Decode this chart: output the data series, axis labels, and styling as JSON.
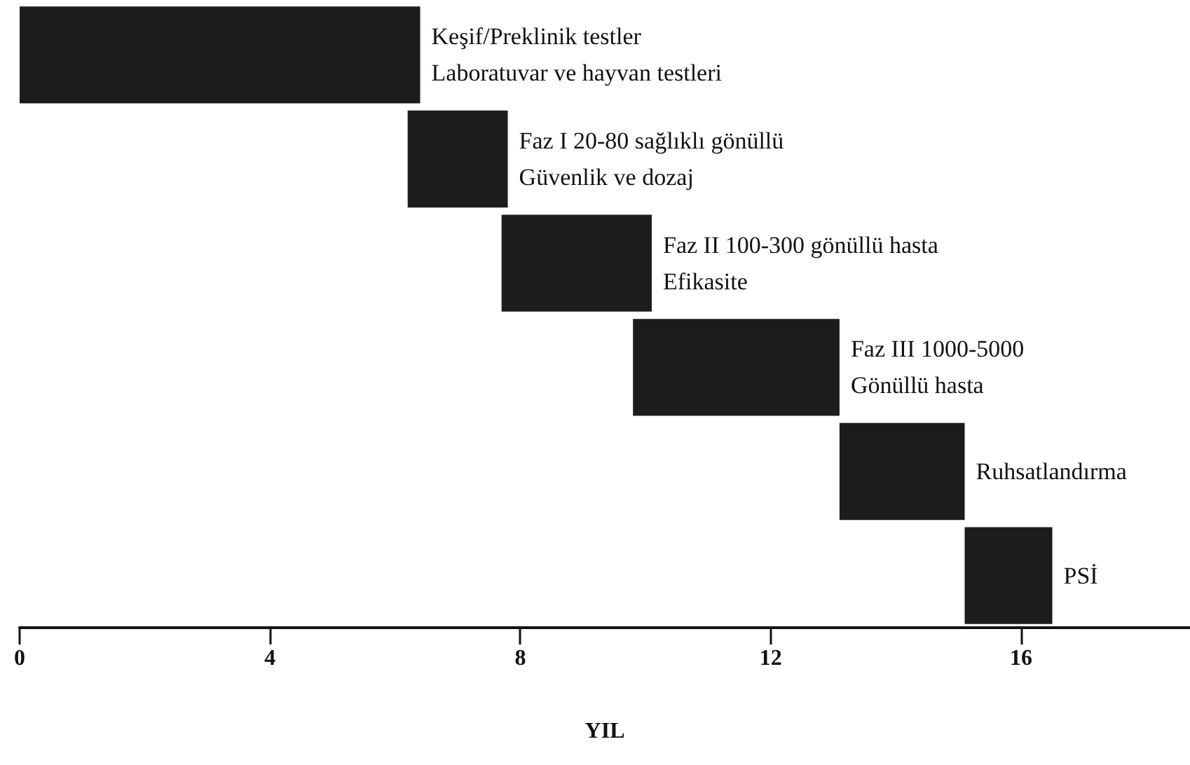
{
  "chart_data": {
    "type": "bar",
    "orientation": "horizontal",
    "xlabel": "YIL",
    "categories": [
      "Keşif/Preklinik testler\nLaboratuvar ve hayvan testleri",
      "Faz I 20-80 sağlıklı gönüllü\nGüvenlik ve dozaj",
      "Faz II 100-300 gönüllü hasta\nEfikasite",
      "Faz III 1000-5000\nGönüllü hasta",
      "Ruhsatlandırma",
      "PSİ"
    ],
    "base": [
      0,
      6.2,
      7.7,
      9.8,
      13.1,
      15.1
    ],
    "values": [
      6.4,
      1.6,
      2.4,
      3.3,
      2.0,
      1.4
    ],
    "color": "#1c1c1c",
    "xlim": [
      0,
      18.7
    ],
    "xticks": [
      0,
      4,
      8,
      12,
      16
    ]
  }
}
